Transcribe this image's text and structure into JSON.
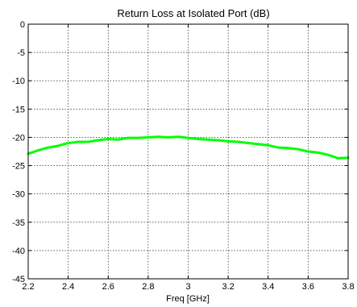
{
  "chart_data": {
    "type": "line",
    "title": "Return Loss at Isolated Port (dB)",
    "xlabel": "Freq [GHz]",
    "ylabel": "",
    "xlim": [
      2.2,
      3.8
    ],
    "ylim": [
      -45,
      0
    ],
    "xticks": [
      2.2,
      2.4,
      2.6,
      2.8,
      3.0,
      3.2,
      3.4,
      3.6,
      3.8
    ],
    "xtick_labels": [
      "2.2",
      "2.4",
      "2.6",
      "2.8",
      "3",
      "3.2",
      "3.4",
      "3.6",
      "3.8"
    ],
    "yticks": [
      0,
      -5,
      -10,
      -15,
      -20,
      -25,
      -30,
      -35,
      -40,
      -45
    ],
    "ytick_labels": [
      "0",
      "-5",
      "-10",
      "-15",
      "-20",
      "-25",
      "-30",
      "-35",
      "-40",
      "-45"
    ],
    "grid": true,
    "legend": "none",
    "series": [
      {
        "color": "#00ff00",
        "x": [
          2.2,
          2.25,
          2.3,
          2.35,
          2.4,
          2.45,
          2.5,
          2.55,
          2.6,
          2.65,
          2.7,
          2.75,
          2.8,
          2.85,
          2.9,
          2.95,
          3.0,
          3.05,
          3.1,
          3.15,
          3.2,
          3.25,
          3.3,
          3.35,
          3.4,
          3.45,
          3.5,
          3.55,
          3.6,
          3.65,
          3.7,
          3.75,
          3.8
        ],
        "y": [
          -22.9,
          -22.3,
          -21.8,
          -21.5,
          -21.0,
          -20.8,
          -20.8,
          -20.5,
          -20.3,
          -20.4,
          -20.1,
          -20.1,
          -20.0,
          -19.9,
          -20.0,
          -19.9,
          -20.1,
          -20.3,
          -20.4,
          -20.5,
          -20.7,
          -20.8,
          -21.0,
          -21.2,
          -21.4,
          -21.8,
          -21.9,
          -22.1,
          -22.5,
          -22.7,
          -23.1,
          -23.7,
          -23.6
        ]
      }
    ]
  }
}
